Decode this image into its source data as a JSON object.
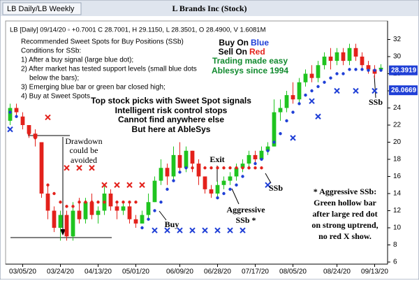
{
  "tab": "LB Daily/LB Weekly",
  "chart_data": {
    "type": "candlestick",
    "title": "L Brands Inc (Stock)",
    "info": "LB [Daily] 09/14/20 ◦ +0.7001 C 28.7001, H 29.1150, L 28.3501, O 28.4900, V 1.6081M",
    "categories": [
      null,
      null,
      "03/05/20",
      null,
      null,
      null,
      null,
      null,
      "03/24/20",
      null,
      null,
      null,
      null,
      null,
      "04/13/20",
      null,
      null,
      null,
      null,
      null,
      "05/01/20",
      null,
      null,
      null,
      null,
      null,
      null,
      "06/09/20",
      null,
      null,
      null,
      null,
      null,
      "06/28/20",
      null,
      null,
      null,
      null,
      null,
      "07/17/20",
      null,
      null,
      null,
      null,
      null,
      "08/05/20",
      null,
      null,
      null,
      null,
      null,
      null,
      "08/24/20",
      null,
      null,
      null,
      null,
      null,
      "09/13/20",
      null
    ],
    "open": [
      22.5,
      24,
      23,
      22,
      21,
      20,
      14,
      12,
      10,
      11.5,
      9,
      12,
      11,
      13,
      11.5,
      12,
      14,
      12.5,
      12,
      12.5,
      11,
      10.5,
      11.5,
      13,
      15.5,
      17,
      16,
      18.5,
      17,
      19,
      17.5,
      16,
      14.5,
      14,
      15,
      15.5,
      16,
      17,
      17.5,
      18.5,
      18,
      19,
      19.5,
      23.5,
      24,
      25.5,
      25,
      27,
      28,
      27.5,
      29,
      30,
      29.5,
      30.5,
      29.5,
      31,
      30,
      29,
      28.5,
      28.49
    ],
    "high": [
      24.5,
      24.5,
      23.5,
      22,
      21.5,
      20,
      15,
      12.5,
      12,
      12,
      13,
      13.5,
      13.5,
      14,
      12.5,
      15,
      14.5,
      13,
      13,
      13,
      11.5,
      12,
      14,
      16,
      18,
      17.5,
      19.5,
      20,
      19.5,
      19,
      18,
      16,
      15,
      15.5,
      16,
      16.5,
      17.5,
      18,
      19,
      19,
      19.5,
      20,
      25,
      25,
      26,
      27,
      27.5,
      28.5,
      29,
      29.5,
      30.5,
      31,
      31,
      31,
      31.5,
      31.5,
      30.5,
      29.5,
      29,
      29.115
    ],
    "low": [
      22,
      23,
      21.5,
      20.5,
      19.5,
      13.5,
      11,
      9.5,
      8.5,
      8.5,
      8.5,
      10.5,
      10.5,
      11,
      10.5,
      11.5,
      12,
      11,
      11.5,
      10.5,
      10,
      10.5,
      11,
      13,
      15,
      15,
      15.5,
      16.5,
      16.5,
      16.5,
      15,
      14,
      13.5,
      13.5,
      14.5,
      15,
      15.5,
      16.5,
      17,
      17.5,
      18,
      18.5,
      19.5,
      22.5,
      23.5,
      24.5,
      24.5,
      26.5,
      27,
      27,
      28.5,
      28.5,
      29,
      29,
      29,
      29.5,
      28.5,
      28,
      27.5,
      28.3501
    ],
    "close": [
      24,
      23.5,
      22,
      21,
      20.5,
      14,
      12,
      10,
      11.5,
      9,
      12,
      11,
      13,
      11.5,
      12,
      14,
      12.5,
      12,
      12.5,
      11,
      10.5,
      11.5,
      13,
      15.5,
      17,
      16,
      18.5,
      17,
      19,
      17.5,
      16,
      14.5,
      14,
      15,
      15.5,
      16,
      17,
      17.5,
      18.5,
      18,
      19,
      19.5,
      23.5,
      24,
      25.5,
      25,
      27,
      28,
      27.5,
      29,
      30,
      29.5,
      30.5,
      29.5,
      31,
      30,
      29,
      28.5,
      28,
      28.7001
    ],
    "up_color": "#1fc41f",
    "down_color": "#e3211b",
    "blue_dots": {
      "color": "#1f3fd6",
      "values": [
        23.5,
        23,
        null,
        null,
        null,
        null,
        null,
        null,
        null,
        null,
        null,
        null,
        null,
        null,
        null,
        null,
        null,
        null,
        null,
        null,
        null,
        10,
        11,
        12,
        13,
        14.5,
        15.5,
        16.5,
        17,
        null,
        null,
        null,
        null,
        13.5,
        14,
        14.5,
        15,
        16,
        17,
        17.5,
        18,
        19,
        20,
        21,
        22.5,
        23.5,
        24.5,
        25.5,
        26,
        26.5,
        27,
        27.5,
        28,
        28,
        28.5,
        28.5,
        28.5,
        28.4,
        28.4,
        28.4
      ]
    },
    "red_dots": {
      "color": "#e3211b",
      "values": [
        null,
        null,
        null,
        21,
        20.5,
        17,
        15,
        14,
        13,
        12.5,
        12.5,
        13,
        13,
        13,
        13,
        13,
        13,
        13,
        13,
        13,
        13,
        null,
        null,
        null,
        null,
        null,
        null,
        null,
        null,
        17,
        17,
        17,
        17,
        17,
        17,
        17,
        17,
        17,
        17,
        17,
        17,
        null,
        null,
        null,
        null,
        null,
        null,
        null,
        null,
        null,
        null,
        null,
        null,
        null,
        null,
        null,
        null,
        null,
        null,
        null
      ]
    },
    "blue_x": {
      "color": "#1f3fd6",
      "values": [
        21.5,
        null,
        null,
        null,
        null,
        null,
        null,
        null,
        null,
        null,
        null,
        null,
        null,
        null,
        null,
        null,
        null,
        null,
        null,
        null,
        null,
        null,
        null,
        9.7,
        null,
        9.7,
        null,
        9.7,
        null,
        9.7,
        null,
        9.7,
        null,
        9.7,
        null,
        9.7,
        null,
        9.7,
        null,
        null,
        null,
        15,
        null,
        null,
        null,
        20.5,
        null,
        null,
        24.8,
        23,
        null,
        null,
        26,
        null,
        null,
        26,
        null,
        null,
        26,
        null
      ]
    },
    "red_x": {
      "color": "#e3211b",
      "values": [
        null,
        null,
        null,
        null,
        null,
        null,
        22.9,
        null,
        null,
        17,
        null,
        17,
        null,
        17,
        null,
        15,
        null,
        15,
        null,
        15,
        null,
        15,
        null,
        null,
        null,
        null,
        null,
        null,
        null,
        null,
        null,
        null,
        null,
        null,
        null,
        null,
        null,
        null,
        null,
        null,
        null,
        null,
        null,
        null,
        null,
        null,
        null,
        null,
        null,
        null,
        null,
        null,
        null,
        null,
        null,
        null,
        null,
        null,
        null,
        null
      ]
    },
    "ylim": [
      6,
      34
    ],
    "yticks": [
      6,
      8,
      10,
      12,
      14,
      16,
      18,
      20,
      22,
      24,
      26,
      28,
      30,
      32
    ],
    "price_tags": [
      {
        "value": 28.3919,
        "color": "#1f3fd6"
      },
      {
        "value": 26.0669,
        "color": "#1f3fd6"
      }
    ],
    "annotations": [
      "Recommended Sweet Spots for Buy Positions (SSb)",
      "Conditions for SSb:",
      "1) After a buy signal (large blue dot);",
      "2) After market has tested support levels (small blue dots",
      "below the bars);",
      "3) Emerging blue bar or green bar closed high;",
      "4) Buy at Sweet Spots",
      "Buy On",
      "Blue",
      "Sell On",
      "Red",
      "Trading made easy",
      "Ablesys since 1994",
      "Top stock picks with Sweet Spot signals",
      "Intelligent risk control stops",
      "Cannot find anywhere else",
      "But here at AbleSys",
      "Drawdown",
      "could be",
      "avoided",
      "Exit",
      "Buy",
      "Aggressive",
      "SSb *",
      "SSb",
      "SSb",
      "* Aggressive SSb:",
      "Green hollow bar",
      "after large red dot",
      "on strong uptrend,",
      "no red X show."
    ]
  }
}
